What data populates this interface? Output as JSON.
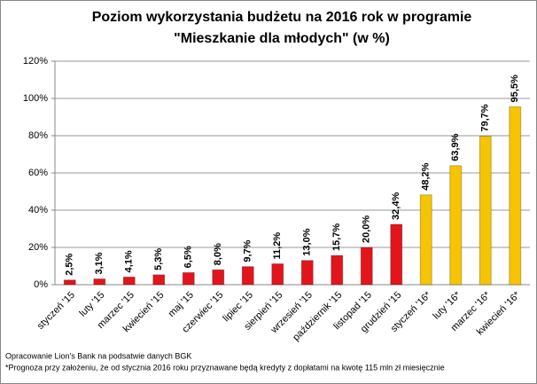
{
  "chart_data": {
    "type": "bar",
    "title": [
      "Poziom wykorzystania budżetu na 2016 rok w programie",
      "\"Mieszkanie dla młodych\" (w %)"
    ],
    "categories": [
      "styczeń '15",
      "luty '15",
      "marzec '15",
      "kwiecień '15",
      "maj '15",
      "czerwiec '15",
      "lipiec '15",
      "sierpień '15",
      "wrzesień '15",
      "październik '15",
      "listopad '15",
      "grudzień '15",
      "styczeń '16*",
      "luty '16*",
      "marzec '16*",
      "kwiecień '16*"
    ],
    "values": [
      2.5,
      3.1,
      4.1,
      5.3,
      6.5,
      8.0,
      9.7,
      11.2,
      13.0,
      15.7,
      20.0,
      32.4,
      48.2,
      63.9,
      79.7,
      95.5
    ],
    "value_labels": [
      "2,5%",
      "3,1%",
      "4,1%",
      "5,3%",
      "6,5%",
      "8,0%",
      "9,7%",
      "11,2%",
      "13,0%",
      "15,7%",
      "20,0%",
      "32,4%",
      "48,2%",
      "63,9%",
      "79,7%",
      "95,5%"
    ],
    "colors": [
      "#e3151c",
      "#e3151c",
      "#e3151c",
      "#e3151c",
      "#e3151c",
      "#e3151c",
      "#e3151c",
      "#e3151c",
      "#e3151c",
      "#e3151c",
      "#e3151c",
      "#e3151c",
      "#f6c400",
      "#f6c400",
      "#f6c400",
      "#f6c400"
    ],
    "ylim": [
      0,
      120
    ],
    "yticks": [
      {
        "value": 0,
        "label": "0%"
      },
      {
        "value": 20,
        "label": "20%"
      },
      {
        "value": 40,
        "label": "40%"
      },
      {
        "value": 60,
        "label": "60%"
      },
      {
        "value": 80,
        "label": "80%"
      },
      {
        "value": 100,
        "label": "100%"
      },
      {
        "value": 120,
        "label": "120%"
      }
    ],
    "grid": true,
    "notes": [
      "Opracowanie Lion's Bank na podsatwie danych BGK",
      "*Prognoza przy założeniu, że od stycznia 2016 roku przyznawane będą kredyty z dopłatami na kwotę 115 mln zł miesięcznie"
    ]
  }
}
